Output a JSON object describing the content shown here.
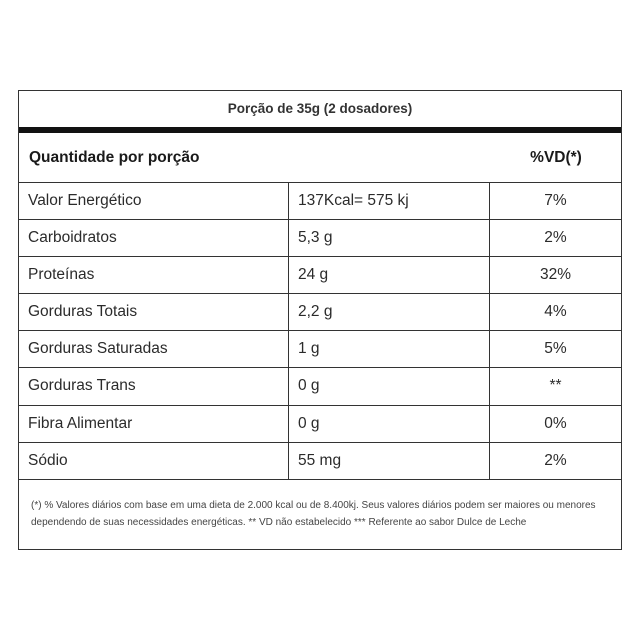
{
  "serving_size": "Porção de 35g (2 dosadores)",
  "header": {
    "left": "Quantidade por porção",
    "right": "%VD(*)"
  },
  "rows": [
    {
      "name": "Valor Energético",
      "amount": "137Kcal= 575 kj",
      "vd": "7%"
    },
    {
      "name": "Carboidratos",
      "amount": "5,3 g",
      "vd": "2%"
    },
    {
      "name": "Proteínas",
      "amount": "24 g",
      "vd": "32%"
    },
    {
      "name": "Gorduras Totais",
      "amount": "2,2 g",
      "vd": "4%"
    },
    {
      "name": "Gorduras Saturadas",
      "amount": "1 g",
      "vd": "5%"
    },
    {
      "name": "Gorduras Trans",
      "amount": "0 g",
      "vd": "**"
    },
    {
      "name": "Fibra Alimentar",
      "amount": "0 g",
      "vd": "0%"
    },
    {
      "name": "Sódio",
      "amount": "55 mg",
      "vd": "2%"
    }
  ],
  "footnote": "(*) % Valores diários com base em uma dieta de 2.000 kcal ou de 8.400kj. Seus valores diários podem ser maiores ou menores dependendo de suas necessidades energéticas. ** VD não estabelecido *** Referente ao sabor Dulce de Leche"
}
